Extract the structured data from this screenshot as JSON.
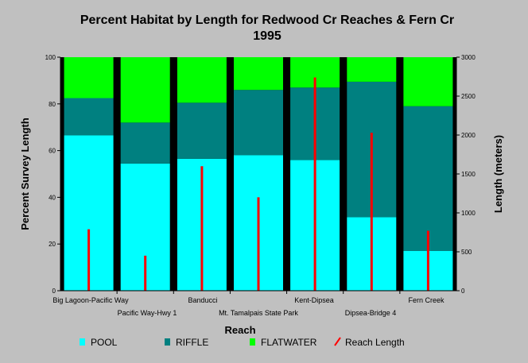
{
  "chart_data": {
    "type": "bar",
    "stacked": true,
    "title_line1": "Percent Habitat by Length for Redwood Cr Reaches & Fern Cr",
    "title_line2": "1995",
    "xlabel": "Reach",
    "ylabel": "Percent Survey Length",
    "y2label": "Length (meters)",
    "ylim": [
      0,
      100
    ],
    "y2lim": [
      0,
      3000
    ],
    "yticks": [
      0,
      20,
      40,
      60,
      80,
      100
    ],
    "y2ticks": [
      0,
      500,
      1000,
      1500,
      2000,
      2500,
      3000
    ],
    "categories": [
      "Big Lagoon-Pacific Way",
      "Pacific Way-Hwy 1",
      "Banducci",
      "Mt. Tamalpais State Park",
      "Kent-Dipsea",
      "Dipsea-Bridge 4",
      "Fern Creek"
    ],
    "series": [
      {
        "name": "POOL",
        "color": "#00ffff",
        "values": [
          66.5,
          54.5,
          56.5,
          58,
          56,
          31.5,
          17
        ]
      },
      {
        "name": "RIFFLE",
        "color": "#008080",
        "values": [
          16,
          17.5,
          24,
          28,
          31,
          58,
          62
        ]
      },
      {
        "name": "FLATWATER",
        "color": "#00ff00",
        "values": [
          17.5,
          28,
          19.5,
          14,
          13,
          10.5,
          21
        ]
      }
    ],
    "line_series": {
      "name": "Reach Length",
      "color": "#ff0000",
      "axis": "y2",
      "values": [
        790,
        450,
        1600,
        1200,
        2740,
        2030,
        770
      ]
    },
    "legend_placement": "bottom",
    "grid": false
  }
}
